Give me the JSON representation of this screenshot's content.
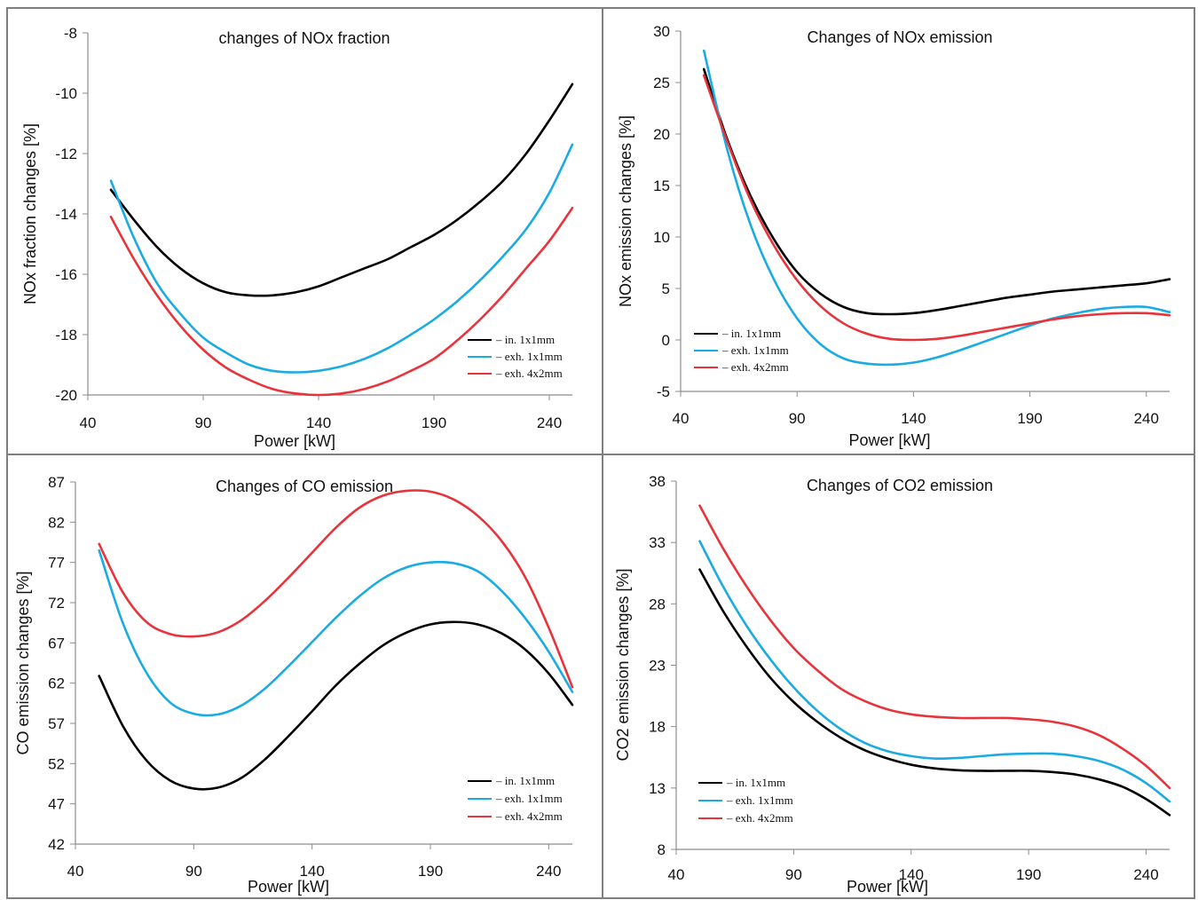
{
  "colors": {
    "black": "#000000",
    "blue": "#1aabe3",
    "red": "#e8333a",
    "axis": "#8c8c8c",
    "frame": "#7f7f7f"
  },
  "chart_data": [
    {
      "type": "line",
      "title": "changes of NOx fraction",
      "xlabel": "Power [kW]",
      "ylabel": "NOx fraction changes [%]",
      "xlim": [
        40,
        250
      ],
      "ylim": [
        -20,
        -8
      ],
      "xticks": [
        40,
        90,
        140,
        190,
        240
      ],
      "yticks": [
        -20,
        -18,
        -16,
        -14,
        -12,
        -10,
        -8
      ],
      "legend_position": "bottom-right",
      "grid": false,
      "series": [
        {
          "name": "– in. 1x1mm",
          "color": "#000000",
          "x": [
            50,
            60,
            70,
            80,
            90,
            100,
            110,
            120,
            130,
            140,
            150,
            160,
            170,
            180,
            190,
            200,
            210,
            220,
            230,
            240,
            250
          ],
          "y": [
            -13.2,
            -14.2,
            -15.1,
            -15.8,
            -16.3,
            -16.6,
            -16.7,
            -16.7,
            -16.6,
            -16.4,
            -16.1,
            -15.8,
            -15.5,
            -15.1,
            -14.7,
            -14.2,
            -13.6,
            -12.9,
            -12.0,
            -10.9,
            -9.7
          ]
        },
        {
          "name": "– exh. 1x1mm",
          "color": "#1aabe3",
          "x": [
            50,
            60,
            70,
            80,
            90,
            100,
            110,
            120,
            130,
            140,
            150,
            160,
            170,
            180,
            190,
            200,
            210,
            220,
            230,
            240,
            250
          ],
          "y": [
            -12.9,
            -14.8,
            -16.3,
            -17.3,
            -18.1,
            -18.6,
            -19.0,
            -19.2,
            -19.25,
            -19.2,
            -19.05,
            -18.8,
            -18.45,
            -18.0,
            -17.5,
            -16.9,
            -16.2,
            -15.4,
            -14.5,
            -13.3,
            -11.7
          ]
        },
        {
          "name": "– exh. 4x2mm",
          "color": "#e8333a",
          "x": [
            50,
            60,
            70,
            80,
            90,
            100,
            110,
            120,
            130,
            140,
            150,
            160,
            170,
            180,
            190,
            200,
            210,
            220,
            230,
            240,
            250
          ],
          "y": [
            -14.1,
            -15.5,
            -16.7,
            -17.7,
            -18.5,
            -19.1,
            -19.5,
            -19.8,
            -19.95,
            -20.0,
            -19.95,
            -19.8,
            -19.55,
            -19.2,
            -18.8,
            -18.2,
            -17.5,
            -16.7,
            -15.8,
            -14.9,
            -13.8
          ]
        }
      ]
    },
    {
      "type": "line",
      "title": "Changes of NOx emission",
      "xlabel": "Power [kW]",
      "ylabel": "NOx emission changes [%]",
      "xlim": [
        40,
        250
      ],
      "ylim": [
        -5,
        30
      ],
      "xticks": [
        40,
        90,
        140,
        190,
        240
      ],
      "yticks": [
        -5,
        0,
        5,
        10,
        15,
        20,
        25,
        30
      ],
      "legend_position": "bottom-left",
      "grid": false,
      "series": [
        {
          "name": "– in. 1x1mm",
          "color": "#000000",
          "x": [
            50,
            60,
            70,
            80,
            90,
            100,
            110,
            120,
            130,
            140,
            150,
            160,
            170,
            180,
            190,
            200,
            210,
            220,
            230,
            240,
            250
          ],
          "y": [
            26.3,
            19.5,
            14.0,
            9.8,
            6.6,
            4.5,
            3.2,
            2.6,
            2.5,
            2.6,
            2.9,
            3.3,
            3.7,
            4.1,
            4.4,
            4.7,
            4.9,
            5.1,
            5.3,
            5.5,
            5.9
          ]
        },
        {
          "name": "– exh. 1x1mm",
          "color": "#1aabe3",
          "x": [
            50,
            60,
            70,
            80,
            90,
            100,
            110,
            120,
            130,
            140,
            150,
            160,
            170,
            180,
            190,
            200,
            210,
            220,
            230,
            240,
            250
          ],
          "y": [
            28.1,
            18.5,
            11.2,
            5.9,
            2.1,
            -0.4,
            -1.8,
            -2.3,
            -2.4,
            -2.2,
            -1.7,
            -1.0,
            -0.2,
            0.6,
            1.4,
            2.1,
            2.6,
            3.0,
            3.2,
            3.2,
            2.7
          ]
        },
        {
          "name": "– exh. 4x2mm",
          "color": "#e8333a",
          "x": [
            50,
            60,
            70,
            80,
            90,
            100,
            110,
            120,
            130,
            140,
            150,
            160,
            170,
            180,
            190,
            200,
            210,
            220,
            230,
            240,
            250
          ],
          "y": [
            25.7,
            19.3,
            13.6,
            9.2,
            5.8,
            3.3,
            1.6,
            0.6,
            0.1,
            0.0,
            0.1,
            0.4,
            0.8,
            1.2,
            1.6,
            2.0,
            2.3,
            2.5,
            2.6,
            2.6,
            2.4
          ]
        }
      ]
    },
    {
      "type": "line",
      "title": "Changes of CO emission",
      "xlabel": "Power [kW]",
      "ylabel": "CO emission changes [%]",
      "xlim": [
        40,
        250
      ],
      "ylim": [
        42,
        87
      ],
      "xticks": [
        40,
        90,
        140,
        190,
        240
      ],
      "yticks": [
        42,
        47,
        52,
        57,
        62,
        67,
        72,
        77,
        82,
        87
      ],
      "legend_position": "bottom-right",
      "grid": false,
      "series": [
        {
          "name": "– in. 1x1mm",
          "color": "#000000",
          "x": [
            50,
            60,
            70,
            80,
            90,
            100,
            110,
            120,
            130,
            140,
            150,
            160,
            170,
            180,
            190,
            200,
            210,
            220,
            230,
            240,
            250
          ],
          "y": [
            62.9,
            56.7,
            52.4,
            49.9,
            48.9,
            49.0,
            50.2,
            52.5,
            55.4,
            58.5,
            61.7,
            64.4,
            66.7,
            68.3,
            69.3,
            69.6,
            69.3,
            68.2,
            66.2,
            63.2,
            59.3
          ]
        },
        {
          "name": "– exh. 1x1mm",
          "color": "#1aabe3",
          "x": [
            50,
            60,
            70,
            80,
            90,
            100,
            110,
            120,
            130,
            140,
            150,
            160,
            170,
            180,
            190,
            200,
            210,
            220,
            230,
            240,
            250
          ],
          "y": [
            78.5,
            69.5,
            63.3,
            59.6,
            58.2,
            58.1,
            59.2,
            61.3,
            64.1,
            67.1,
            70.1,
            72.8,
            75.0,
            76.4,
            77.0,
            76.9,
            75.9,
            73.5,
            70.1,
            65.9,
            60.9
          ]
        },
        {
          "name": "– exh. 4x2mm",
          "color": "#e8333a",
          "x": [
            50,
            60,
            70,
            80,
            90,
            100,
            110,
            120,
            130,
            140,
            150,
            160,
            170,
            180,
            190,
            200,
            210,
            220,
            230,
            240,
            250
          ],
          "y": [
            79.3,
            73.3,
            69.6,
            68.1,
            67.8,
            68.3,
            69.8,
            72.2,
            75.1,
            78.2,
            81.3,
            83.8,
            85.3,
            85.9,
            85.8,
            84.8,
            82.8,
            79.7,
            75.2,
            68.9,
            61.5
          ]
        }
      ]
    },
    {
      "type": "line",
      "title": "Changes of CO2 emission",
      "xlabel": "Power [kW]",
      "ylabel": "CO2 emission changes [%]",
      "xlim": [
        40,
        250
      ],
      "ylim": [
        8,
        38
      ],
      "xticks": [
        40,
        90,
        140,
        190,
        240
      ],
      "yticks": [
        8,
        13,
        18,
        23,
        28,
        33,
        38
      ],
      "legend_position": "bottom-left",
      "grid": false,
      "series": [
        {
          "name": "– in. 1x1mm",
          "color": "#000000",
          "x": [
            50,
            60,
            70,
            80,
            90,
            100,
            110,
            120,
            130,
            140,
            150,
            160,
            170,
            180,
            190,
            200,
            210,
            220,
            230,
            240,
            250
          ],
          "y": [
            30.8,
            27.4,
            24.5,
            22.0,
            20.0,
            18.4,
            17.1,
            16.1,
            15.4,
            14.9,
            14.6,
            14.45,
            14.4,
            14.4,
            14.4,
            14.3,
            14.1,
            13.7,
            13.1,
            12.1,
            10.8
          ]
        },
        {
          "name": "– exh. 1x1mm",
          "color": "#1aabe3",
          "x": [
            50,
            60,
            70,
            80,
            90,
            100,
            110,
            120,
            130,
            140,
            150,
            160,
            170,
            180,
            190,
            200,
            210,
            220,
            230,
            240,
            250
          ],
          "y": [
            33.1,
            29.4,
            26.2,
            23.5,
            21.2,
            19.3,
            17.8,
            16.7,
            16.0,
            15.6,
            15.4,
            15.45,
            15.6,
            15.75,
            15.8,
            15.8,
            15.6,
            15.2,
            14.5,
            13.4,
            11.9
          ]
        },
        {
          "name": "– exh. 4x2mm",
          "color": "#e8333a",
          "x": [
            50,
            60,
            70,
            80,
            90,
            100,
            110,
            120,
            130,
            140,
            150,
            160,
            170,
            180,
            190,
            200,
            210,
            220,
            230,
            240,
            250
          ],
          "y": [
            36.0,
            32.5,
            29.4,
            26.7,
            24.4,
            22.6,
            21.1,
            20.1,
            19.4,
            19.0,
            18.8,
            18.7,
            18.7,
            18.7,
            18.6,
            18.4,
            18.0,
            17.3,
            16.2,
            14.8,
            13.0
          ]
        }
      ]
    }
  ]
}
